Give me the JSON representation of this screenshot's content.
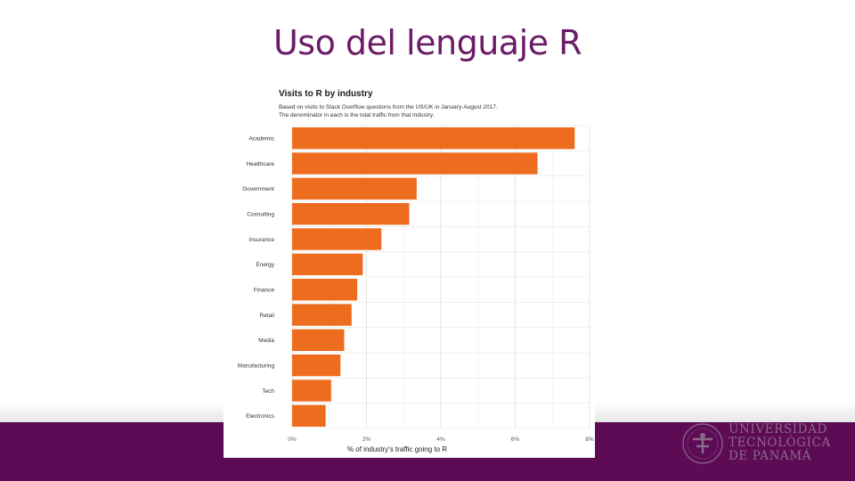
{
  "slide": {
    "title": "Uso del lenguaje R"
  },
  "colors": {
    "title": "#6a1b66",
    "footer": "#5d0b55",
    "bar": "#ee6c1e",
    "logo": "#8a6a88"
  },
  "logo": {
    "lines": [
      "UNIVERSIDAD",
      "TECNOLÓGICA",
      "DE PANAMÁ"
    ]
  },
  "chart_data": {
    "type": "bar",
    "orientation": "horizontal",
    "title": "Visits to R by industry",
    "subtitle_lines": [
      "Based on visits to Stack Overflow questions from the US/UK in January-August 2017.",
      "The denominator in each is the total traffic from that industry."
    ],
    "xlabel": "% of industry's traffic going to R",
    "ylabel": "",
    "xlim": [
      0,
      8
    ],
    "x_ticks": [
      0,
      2,
      4,
      6,
      8
    ],
    "x_tick_labels": [
      "0%",
      "2%",
      "4%",
      "6%",
      "8%"
    ],
    "grid": true,
    "categories": [
      "Academic",
      "Healthcare",
      "Government",
      "Consulting",
      "Insurance",
      "Energy",
      "Finance",
      "Retail",
      "Media",
      "Manufacturing",
      "Tech",
      "Electronics"
    ],
    "values": [
      7.6,
      6.6,
      3.35,
      3.15,
      2.4,
      1.9,
      1.75,
      1.6,
      1.4,
      1.3,
      1.05,
      0.9
    ]
  }
}
